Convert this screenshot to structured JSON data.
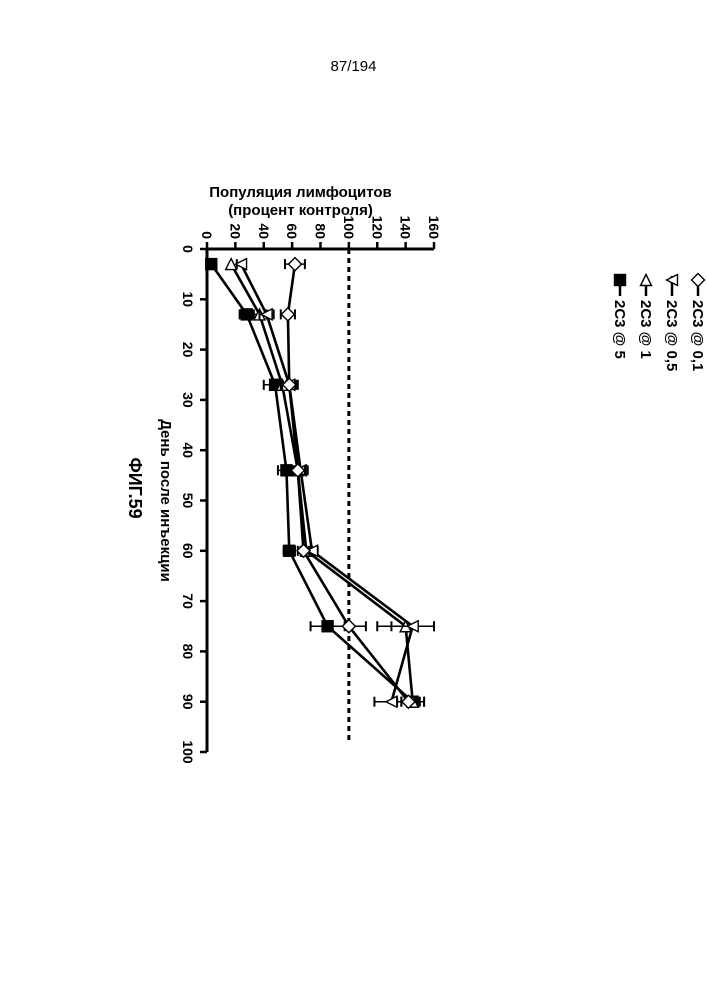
{
  "page": {
    "number": "87/194",
    "figure_label": "ФИГ.59"
  },
  "chart_data": {
    "type": "line",
    "title": "",
    "xlabel": "День после инъекции",
    "ylabel": [
      "Популяция лимфоцитов",
      "(процент контроля)"
    ],
    "xlim": [
      0,
      100
    ],
    "ylim": [
      0,
      160
    ],
    "x_ticks": [
      0,
      10,
      20,
      30,
      40,
      50,
      60,
      70,
      80,
      90,
      100
    ],
    "y_ticks": [
      0,
      20,
      40,
      60,
      80,
      100,
      120,
      140,
      160
    ],
    "reference_line": {
      "y": 100,
      "style": "dashed"
    },
    "legend_position": "right",
    "grid": false,
    "series": [
      {
        "name": "2C3 @ 5",
        "marker": "square-filled",
        "x": [
          3,
          13,
          27,
          44,
          60,
          75,
          90
        ],
        "y": [
          3,
          28,
          48,
          56,
          58,
          85,
          145
        ],
        "err": [
          0,
          5,
          8,
          6,
          4,
          12,
          8
        ]
      },
      {
        "name": "2C3 @ 1",
        "marker": "triangle-left-open",
        "x": [
          3,
          13,
          27,
          44,
          60,
          75,
          90
        ],
        "y": [
          17,
          37,
          53,
          64,
          70,
          140,
          145
        ],
        "err": [
          0,
          5,
          6,
          5,
          4,
          20,
          8
        ]
      },
      {
        "name": "2C3 @ 0,5",
        "marker": "triangle-down-open",
        "x": [
          3,
          13,
          27,
          44,
          60,
          75,
          90
        ],
        "y": [
          24,
          42,
          58,
          66,
          74,
          145,
          130
        ],
        "err": [
          3,
          5,
          6,
          5,
          4,
          15,
          12
        ]
      },
      {
        "name": "2C3 @ 0,1",
        "marker": "diamond-open",
        "x": [
          3,
          13,
          27,
          44,
          60,
          75,
          90
        ],
        "y": [
          62,
          57,
          58,
          64,
          68,
          100,
          142
        ],
        "err": [
          7,
          5,
          5,
          5,
          4,
          12,
          8
        ]
      }
    ]
  }
}
